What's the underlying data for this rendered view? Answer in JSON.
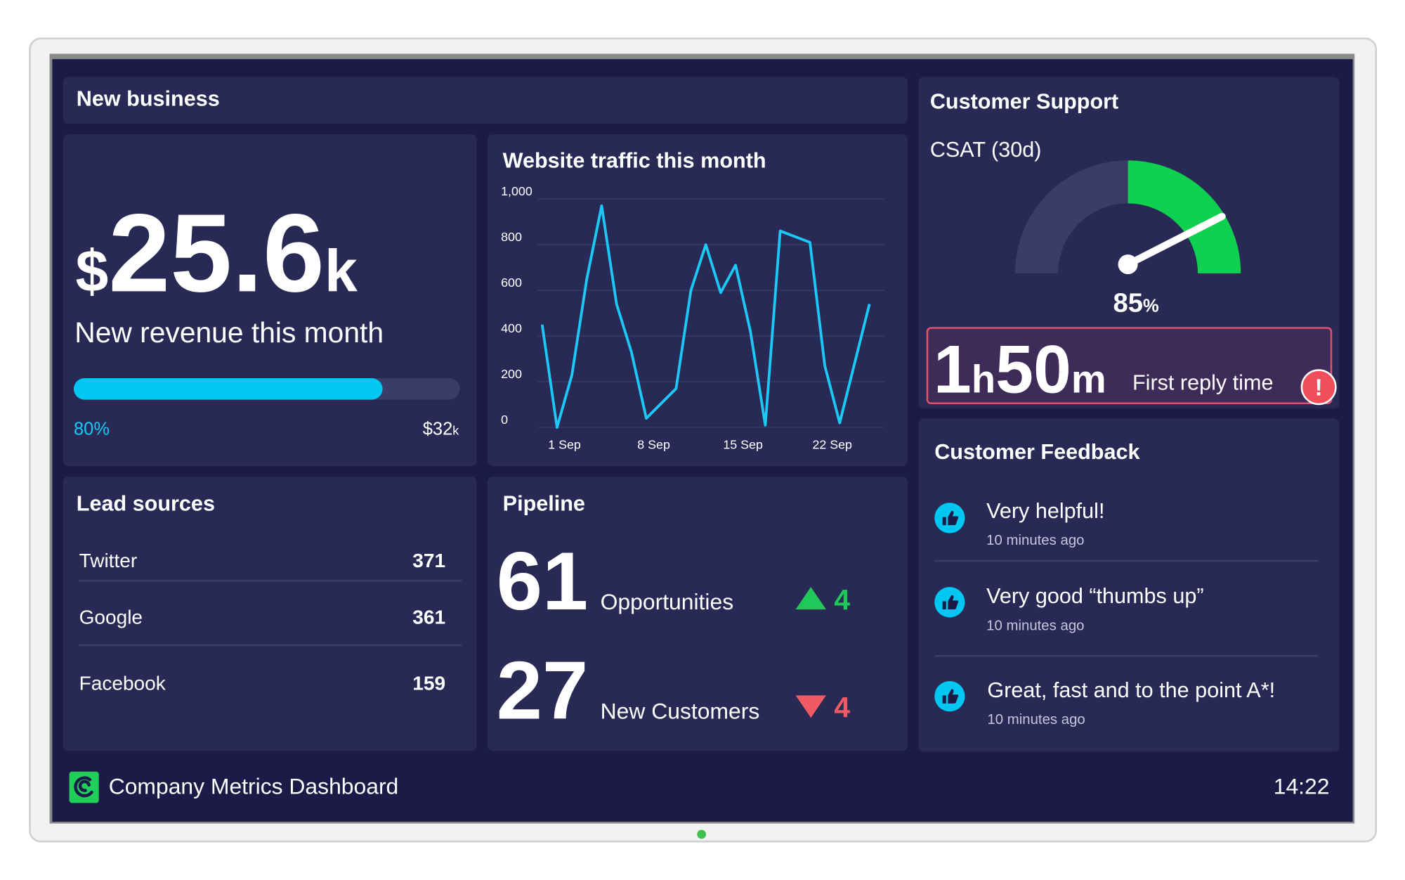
{
  "new_business": {
    "title": "New business",
    "revenue_currency": "$",
    "revenue": 25.6,
    "revenue_unit": "k",
    "revenue_label": "New revenue this month",
    "progress": 80,
    "progress_label": "80%",
    "target": "$32",
    "target_unit": "k"
  },
  "website_traffic": {
    "type": "line",
    "title": "Website traffic this month",
    "color": "#1cc8f5",
    "values": [
      450,
      0,
      230,
      650,
      970,
      540,
      330,
      40,
      105,
      170,
      600,
      800,
      590,
      710,
      420,
      10,
      860,
      835,
      810,
      270,
      20,
      280,
      540
    ],
    "xlim": [
      -0.3,
      23
    ],
    "xticks": [
      {
        "value": 1.5,
        "label": "1 Sep"
      },
      {
        "value": 7.5,
        "label": "8 Sep"
      },
      {
        "value": 13.5,
        "label": "15 Sep"
      },
      {
        "value": 19.5,
        "label": "22 Sep"
      }
    ],
    "ylim": [
      0,
      1000
    ],
    "yticks": [
      0,
      200,
      400,
      600,
      800,
      {
        "value": 1000,
        "label": "1,000"
      }
    ],
    "grid": true
  },
  "customer_support": {
    "title": "Customer Support",
    "csat_label": "CSAT (30d)",
    "csat": 85,
    "csat_unit": "%",
    "reply_hours": "1",
    "reply_hours_unit": "h",
    "reply_minutes": "50",
    "reply_minutes_unit": "m",
    "reply_label": "First reply time",
    "alert": "!"
  },
  "lead_sources": {
    "title": "Lead sources",
    "rows": [
      [
        "Twitter",
        371
      ],
      [
        "Google",
        361
      ],
      [
        "Facebook",
        159
      ]
    ]
  },
  "pipeline": {
    "title": "Pipeline",
    "items": [
      {
        "value": 61,
        "label": "Opportunities",
        "change": 4
      },
      {
        "value": 27,
        "label": "New Customers",
        "change": 4
      }
    ]
  },
  "customer_feedback": {
    "title": "Customer Feedback",
    "items": [
      {
        "text": "Very helpful!",
        "time": "10 minutes ago"
      },
      {
        "text": "Very good “thumbs up”",
        "time": "10 minutes ago"
      },
      {
        "text": "Great, fast and to the point A*!",
        "time": "10 minutes ago"
      }
    ]
  },
  "footer": {
    "title": "Company Metrics Dashboard",
    "time": "14:22"
  }
}
